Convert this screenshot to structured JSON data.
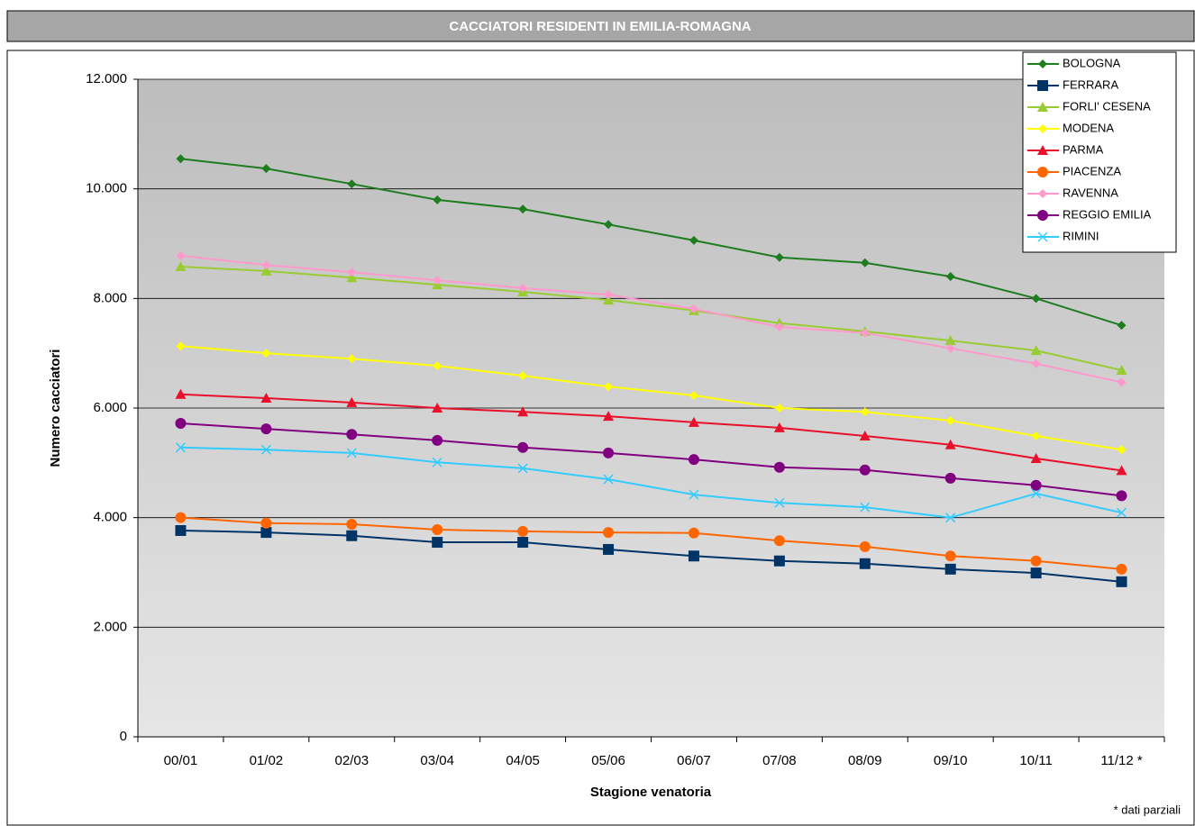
{
  "chart_data": {
    "type": "line",
    "title": "CACCIATORI RESIDENTI IN EMILIA-ROMAGNA",
    "x_label": "Stagione venatoria",
    "y_label": "Numero cacciatori",
    "note": "* dati parziali",
    "categories": [
      "00/01",
      "01/02",
      "02/03",
      "03/04",
      "04/05",
      "05/06",
      "06/07",
      "07/08",
      "08/09",
      "09/10",
      "10/11",
      "11/12 *"
    ],
    "ylim": [
      0,
      12000
    ],
    "yticks": [
      0,
      {
        "value": 2000,
        "label": "2.000"
      },
      {
        "value": 4000,
        "label": "4.000"
      },
      {
        "value": 6000,
        "label": "6.000"
      },
      {
        "value": 8000,
        "label": "8.000"
      },
      {
        "value": 10000,
        "label": "10.000"
      },
      {
        "value": 12000,
        "label": "12.000"
      }
    ],
    "grid": true,
    "legend": "top-right",
    "series": [
      {
        "name": "BOLOGNA",
        "color": "#1e7d1e",
        "marker": "diamond",
        "values": [
          10550,
          10370,
          10090,
          9800,
          9630,
          9350,
          9060,
          8750,
          8650,
          8400,
          8000,
          7510
        ]
      },
      {
        "name": "FERRARA",
        "color": "#003366",
        "marker": "square",
        "values": [
          3765,
          3730,
          3670,
          3550,
          3550,
          3420,
          3300,
          3210,
          3160,
          3060,
          2990,
          2830
        ]
      },
      {
        "name": "FORLI' CESENA",
        "color": "#99cc33",
        "marker": "triangle",
        "values": [
          8580,
          8500,
          8380,
          8250,
          8120,
          7970,
          7780,
          7550,
          7400,
          7230,
          7050,
          6690
        ]
      },
      {
        "name": "MODENA",
        "color": "#ffff00",
        "marker": "diamond",
        "values": [
          7130,
          7000,
          6900,
          6770,
          6590,
          6390,
          6230,
          6000,
          5930,
          5770,
          5490,
          5240
        ]
      },
      {
        "name": "PARMA",
        "color": "#e8102a",
        "marker": "triangle",
        "values": [
          6250,
          6180,
          6100,
          6000,
          5930,
          5850,
          5740,
          5640,
          5490,
          5330,
          5080,
          4860
        ]
      },
      {
        "name": "PIACENZA",
        "color": "#ff6600",
        "marker": "circle",
        "values": [
          4000,
          3900,
          3880,
          3780,
          3750,
          3730,
          3720,
          3580,
          3470,
          3300,
          3210,
          3060
        ]
      },
      {
        "name": "RAVENNA",
        "color": "#ff99cc",
        "marker": "diamond",
        "values": [
          8780,
          8610,
          8480,
          8330,
          8190,
          8070,
          7810,
          7480,
          7370,
          7090,
          6810,
          6470
        ]
      },
      {
        "name": "REGGIO EMILIA",
        "color": "#800080",
        "marker": "circle",
        "values": [
          5720,
          5620,
          5520,
          5410,
          5280,
          5180,
          5060,
          4920,
          4870,
          4720,
          4590,
          4400
        ]
      },
      {
        "name": "RIMINI",
        "color": "#33ccff",
        "marker": "x",
        "values": [
          5280,
          5240,
          5180,
          5010,
          4900,
          4700,
          4420,
          4270,
          4190,
          4000,
          4440,
          4090
        ]
      }
    ]
  }
}
